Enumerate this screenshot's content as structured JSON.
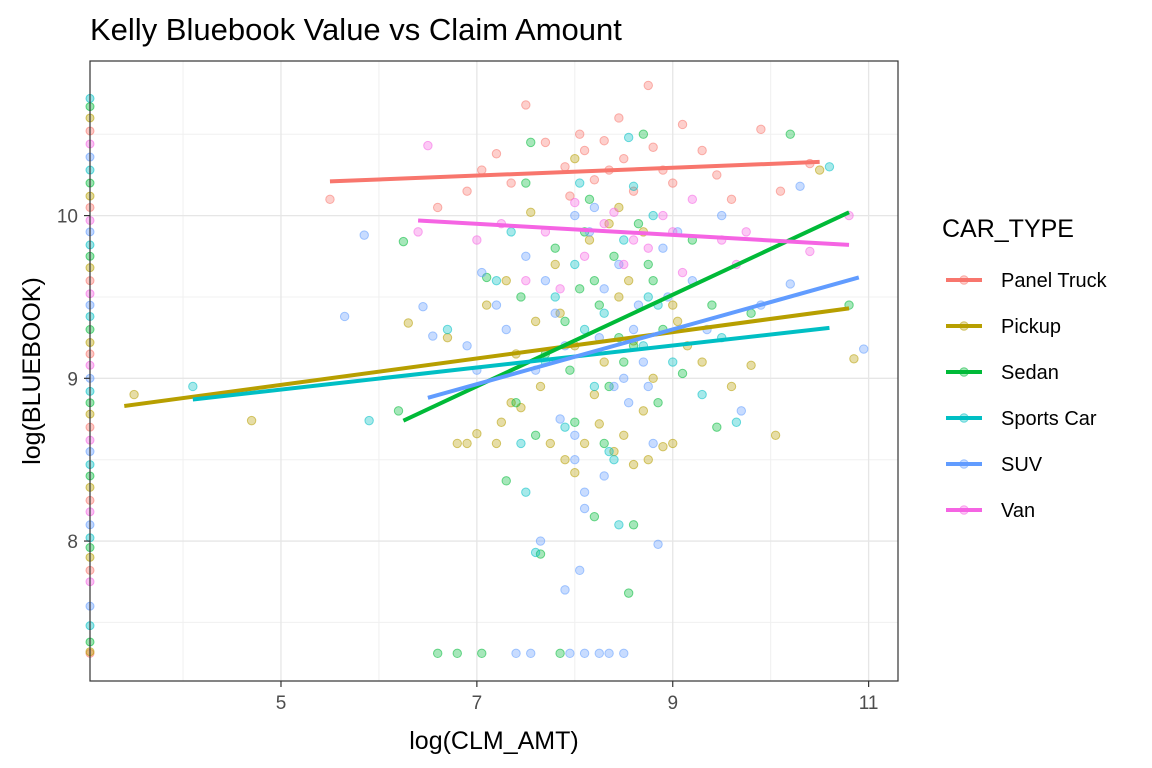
{
  "chart_data": {
    "type": "scatter",
    "title": "Kelly Bluebook Value vs Claim Amount",
    "xlabel": "log(CLM_AMT)",
    "ylabel": "log(BLUEBOOK)",
    "xlim": [
      3.05,
      11.3
    ],
    "ylim": [
      7.14,
      10.95
    ],
    "x_ticks": [
      5,
      7,
      9,
      11
    ],
    "y_ticks": [
      8,
      9,
      10
    ],
    "x_minor_ticks": [
      4,
      6,
      8,
      10
    ],
    "y_minor_ticks": [
      7.5,
      8.5,
      9.5,
      10.5
    ],
    "grid": true,
    "legend": {
      "title": "CAR_TYPE",
      "position": "right"
    },
    "trend_lines": [
      {
        "name": "Panel Truck",
        "color": "#F8766D",
        "x": [
          5.5,
          10.5
        ],
        "y": [
          10.21,
          10.33
        ]
      },
      {
        "name": "Pickup",
        "color": "#B79F00",
        "x": [
          3.4,
          10.8
        ],
        "y": [
          8.83,
          9.43
        ]
      },
      {
        "name": "Sedan",
        "color": "#00BA38",
        "x": [
          6.25,
          10.8
        ],
        "y": [
          8.74,
          10.02
        ]
      },
      {
        "name": "Sports Car",
        "color": "#00BFC4",
        "x": [
          4.1,
          10.6
        ],
        "y": [
          8.87,
          9.31
        ]
      },
      {
        "name": "SUV",
        "color": "#619CFF",
        "x": [
          6.5,
          10.9
        ],
        "y": [
          8.88,
          9.62
        ]
      },
      {
        "name": "Van",
        "color": "#F564E3",
        "x": [
          6.4,
          10.8
        ],
        "y": [
          9.97,
          9.82
        ]
      }
    ],
    "series": [
      {
        "name": "Panel Truck",
        "color": "#F8766D",
        "points": [
          [
            5.5,
            10.1
          ],
          [
            6.6,
            10.05
          ],
          [
            7.5,
            10.68
          ],
          [
            7.9,
            10.3
          ],
          [
            8.1,
            10.4
          ],
          [
            8.3,
            10.46
          ],
          [
            8.75,
            10.8
          ],
          [
            8.9,
            10.28
          ],
          [
            9.1,
            10.56
          ],
          [
            9.0,
            10.2
          ],
          [
            9.9,
            10.53
          ],
          [
            10.4,
            10.32
          ],
          [
            8.45,
            10.6
          ],
          [
            7.2,
            10.38
          ],
          [
            8.6,
            10.15
          ],
          [
            7.05,
            10.28
          ],
          [
            9.3,
            10.4
          ],
          [
            8.2,
            10.22
          ],
          [
            9.6,
            10.1
          ],
          [
            7.7,
            10.45
          ],
          [
            8.5,
            10.35
          ],
          [
            6.9,
            10.15
          ],
          [
            8.05,
            10.5
          ],
          [
            9.45,
            10.25
          ],
          [
            7.35,
            10.2
          ],
          [
            8.8,
            10.42
          ],
          [
            10.1,
            10.15
          ],
          [
            7.95,
            10.12
          ],
          [
            8.35,
            10.28
          ]
        ]
      },
      {
        "name": "Pickup",
        "color": "#B79F00",
        "points": [
          [
            3.5,
            8.9
          ],
          [
            4.7,
            8.74
          ],
          [
            6.3,
            9.34
          ],
          [
            6.7,
            9.25
          ],
          [
            6.9,
            8.6
          ],
          [
            7.2,
            8.6
          ],
          [
            7.35,
            8.85
          ],
          [
            7.45,
            8.82
          ],
          [
            7.6,
            9.35
          ],
          [
            7.75,
            8.6
          ],
          [
            7.9,
            8.5
          ],
          [
            8.0,
            8.42
          ],
          [
            8.1,
            8.6
          ],
          [
            8.2,
            8.9
          ],
          [
            8.3,
            9.1
          ],
          [
            8.4,
            8.55
          ],
          [
            8.5,
            8.65
          ],
          [
            8.6,
            9.23
          ],
          [
            8.7,
            8.8
          ],
          [
            8.8,
            9.0
          ],
          [
            8.9,
            8.58
          ],
          [
            9.05,
            9.35
          ],
          [
            9.3,
            9.1
          ],
          [
            9.6,
            8.95
          ],
          [
            9.8,
            9.08
          ],
          [
            10.05,
            8.65
          ],
          [
            10.5,
            10.28
          ],
          [
            10.85,
            9.12
          ],
          [
            7.1,
            9.45
          ],
          [
            7.3,
            9.6
          ],
          [
            7.8,
            9.7
          ],
          [
            8.15,
            9.85
          ],
          [
            8.35,
            9.95
          ],
          [
            8.55,
            9.6
          ],
          [
            8.7,
            9.9
          ],
          [
            7.55,
            10.02
          ],
          [
            8.0,
            10.35
          ],
          [
            8.45,
            10.05
          ],
          [
            9.0,
            9.45
          ],
          [
            7.0,
            8.66
          ],
          [
            7.25,
            8.73
          ],
          [
            8.25,
            8.72
          ],
          [
            8.75,
            8.5
          ],
          [
            9.0,
            8.6
          ],
          [
            7.65,
            8.95
          ],
          [
            8.6,
            8.47
          ],
          [
            6.8,
            8.6
          ],
          [
            7.4,
            9.15
          ],
          [
            8.0,
            9.2
          ],
          [
            9.15,
            9.2
          ],
          [
            7.85,
            9.4
          ],
          [
            8.45,
            9.5
          ]
        ]
      },
      {
        "name": "Sedan",
        "color": "#00BA38",
        "points": [
          [
            6.2,
            8.8
          ],
          [
            6.25,
            9.84
          ],
          [
            7.1,
            9.62
          ],
          [
            7.3,
            8.37
          ],
          [
            7.5,
            10.2
          ],
          [
            7.6,
            8.65
          ],
          [
            7.8,
            9.8
          ],
          [
            7.9,
            9.35
          ],
          [
            8.0,
            8.73
          ],
          [
            8.1,
            9.9
          ],
          [
            8.2,
            9.6
          ],
          [
            8.3,
            8.6
          ],
          [
            8.4,
            9.75
          ],
          [
            8.5,
            9.1
          ],
          [
            8.6,
            9.2
          ],
          [
            8.7,
            10.5
          ],
          [
            8.8,
            9.6
          ],
          [
            8.9,
            9.3
          ],
          [
            9.1,
            9.03
          ],
          [
            9.4,
            9.45
          ],
          [
            9.45,
            8.7
          ],
          [
            9.8,
            9.4
          ],
          [
            10.2,
            10.5
          ],
          [
            10.8,
            9.45
          ],
          [
            7.4,
            8.85
          ],
          [
            7.7,
            9.15
          ],
          [
            8.05,
            9.55
          ],
          [
            8.25,
            9.45
          ],
          [
            8.45,
            9.25
          ],
          [
            8.6,
            8.1
          ],
          [
            8.55,
            7.68
          ],
          [
            7.65,
            7.92
          ],
          [
            7.55,
            10.45
          ],
          [
            8.15,
            10.1
          ],
          [
            8.65,
            9.95
          ],
          [
            6.6,
            7.31
          ],
          [
            6.8,
            7.31
          ],
          [
            7.05,
            7.31
          ],
          [
            7.85,
            7.31
          ],
          [
            8.2,
            8.15
          ],
          [
            8.35,
            8.95
          ],
          [
            7.95,
            9.05
          ],
          [
            8.75,
            9.7
          ],
          [
            9.2,
            9.85
          ],
          [
            7.45,
            9.5
          ],
          [
            8.85,
            8.85
          ]
        ]
      },
      {
        "name": "Sports Car",
        "color": "#00BFC4",
        "points": [
          [
            4.1,
            8.95
          ],
          [
            5.9,
            8.74
          ],
          [
            7.2,
            9.6
          ],
          [
            7.5,
            8.3
          ],
          [
            7.7,
            9.1
          ],
          [
            7.8,
            9.5
          ],
          [
            8.0,
            9.7
          ],
          [
            8.2,
            8.95
          ],
          [
            8.3,
            9.4
          ],
          [
            8.4,
            8.5
          ],
          [
            8.5,
            9.85
          ],
          [
            8.55,
            10.48
          ],
          [
            8.7,
            9.2
          ],
          [
            8.85,
            9.45
          ],
          [
            9.0,
            9.1
          ],
          [
            9.3,
            8.9
          ],
          [
            9.65,
            8.73
          ],
          [
            10.6,
            10.3
          ],
          [
            6.7,
            9.3
          ],
          [
            7.45,
            8.6
          ],
          [
            7.9,
            8.7
          ],
          [
            8.1,
            9.3
          ],
          [
            8.35,
            8.55
          ],
          [
            8.6,
            10.18
          ],
          [
            8.8,
            10.0
          ],
          [
            9.5,
            9.25
          ],
          [
            7.35,
            9.9
          ],
          [
            8.05,
            10.2
          ],
          [
            7.6,
            7.93
          ],
          [
            8.45,
            8.1
          ],
          [
            8.75,
            9.5
          ]
        ]
      },
      {
        "name": "SUV",
        "color": "#619CFF",
        "points": [
          [
            5.65,
            9.38
          ],
          [
            5.85,
            9.88
          ],
          [
            6.45,
            9.44
          ],
          [
            6.55,
            9.26
          ],
          [
            7.0,
            9.05
          ],
          [
            7.3,
            9.3
          ],
          [
            7.5,
            9.75
          ],
          [
            7.7,
            9.6
          ],
          [
            7.9,
            9.2
          ],
          [
            8.0,
            8.65
          ],
          [
            8.1,
            8.2
          ],
          [
            8.15,
            9.9
          ],
          [
            8.3,
            9.55
          ],
          [
            8.4,
            8.95
          ],
          [
            8.5,
            9.0
          ],
          [
            8.6,
            9.3
          ],
          [
            8.7,
            9.1
          ],
          [
            8.8,
            8.6
          ],
          [
            8.95,
            9.5
          ],
          [
            9.2,
            9.6
          ],
          [
            9.5,
            10.0
          ],
          [
            9.9,
            9.45
          ],
          [
            10.2,
            9.58
          ],
          [
            10.3,
            10.18
          ],
          [
            10.95,
            9.18
          ],
          [
            7.65,
            8.0
          ],
          [
            8.05,
            7.82
          ],
          [
            8.3,
            8.4
          ],
          [
            8.55,
            8.85
          ],
          [
            7.4,
            7.31
          ],
          [
            7.55,
            7.31
          ],
          [
            7.95,
            7.31
          ],
          [
            8.1,
            7.31
          ],
          [
            8.25,
            7.31
          ],
          [
            8.35,
            7.31
          ],
          [
            8.5,
            7.31
          ],
          [
            7.8,
            9.4
          ],
          [
            8.25,
            9.25
          ],
          [
            8.45,
            9.7
          ],
          [
            8.65,
            9.45
          ],
          [
            7.6,
            9.05
          ],
          [
            8.9,
            9.8
          ],
          [
            8.2,
            10.05
          ],
          [
            7.2,
            9.45
          ],
          [
            9.05,
            9.9
          ],
          [
            8.1,
            8.3
          ],
          [
            7.85,
            8.75
          ],
          [
            9.35,
            9.3
          ],
          [
            8.0,
            10.0
          ],
          [
            7.05,
            9.65
          ],
          [
            8.75,
            8.95
          ],
          [
            6.9,
            9.2
          ],
          [
            8.85,
            7.98
          ],
          [
            7.9,
            7.7
          ],
          [
            9.7,
            8.8
          ],
          [
            8.0,
            8.5
          ]
        ]
      },
      {
        "name": "Van",
        "color": "#F564E3",
        "points": [
          [
            6.4,
            9.9
          ],
          [
            6.5,
            10.43
          ],
          [
            7.0,
            9.85
          ],
          [
            7.7,
            9.9
          ],
          [
            8.1,
            9.75
          ],
          [
            8.3,
            9.95
          ],
          [
            8.5,
            9.7
          ],
          [
            8.75,
            9.8
          ],
          [
            9.0,
            9.9
          ],
          [
            9.2,
            10.1
          ],
          [
            9.5,
            9.85
          ],
          [
            9.75,
            9.9
          ],
          [
            10.4,
            9.78
          ],
          [
            10.8,
            10.0
          ],
          [
            7.5,
            9.6
          ],
          [
            8.0,
            10.08
          ],
          [
            8.6,
            9.85
          ],
          [
            9.1,
            9.65
          ],
          [
            7.85,
            9.55
          ],
          [
            8.4,
            10.02
          ],
          [
            9.65,
            9.7
          ],
          [
            7.25,
            9.95
          ],
          [
            8.9,
            10.0
          ]
        ]
      }
    ],
    "left_edge_points": {
      "x": 3.05,
      "y_values": [
        7.31,
        7.32,
        7.38,
        7.48,
        7.6,
        7.75,
        7.82,
        7.9,
        7.96,
        8.02,
        8.1,
        8.18,
        8.25,
        8.33,
        8.4,
        8.47,
        8.55,
        8.62,
        8.7,
        8.78,
        8.85,
        8.92,
        9.0,
        9.08,
        9.15,
        9.22,
        9.3,
        9.38,
        9.45,
        9.52,
        9.6,
        9.68,
        9.75,
        9.82,
        9.9,
        9.97,
        10.05,
        10.12,
        10.2,
        10.28,
        10.36,
        10.44,
        10.52,
        10.6,
        10.67,
        10.72
      ]
    }
  }
}
